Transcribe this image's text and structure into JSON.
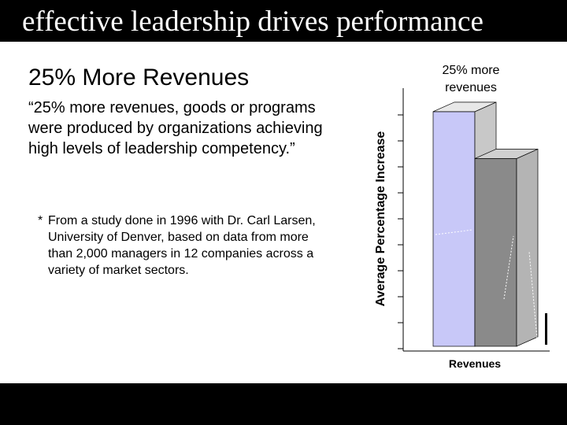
{
  "slide": {
    "title": "effective leadership drives performance"
  },
  "content": {
    "heading": "25% More Revenues",
    "quote": "“25% more revenues, goods or programs were produced by organizations achieving high levels of leadership competency.”",
    "footnote_marker": "*",
    "footnote": "From a study done in 1996 with Dr. Carl Larsen, University of Denver, based on data from more than 2,000 managers in 12 companies across a variety of market sectors."
  },
  "chart_data": {
    "type": "bar",
    "title": "25% more revenues",
    "ylabel": "Average Percentage Increase",
    "categories": [
      "Revenues"
    ],
    "series": [
      {
        "values": [
          125
        ],
        "color": "#c8c8f8"
      },
      {
        "values": [
          100
        ],
        "color": "#8a8a8a"
      }
    ],
    "ylim": [
      0,
      135
    ],
    "grid": false,
    "legend": "none"
  }
}
